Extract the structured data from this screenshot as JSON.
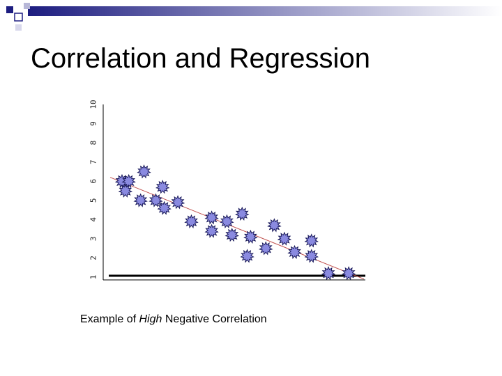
{
  "slide": {
    "title": "Correlation and Regression",
    "caption": {
      "before": "Example of ",
      "emphasis": "High",
      "after": " Negative Correlation"
    }
  },
  "colors": {
    "banner_navy": "#1d1d80",
    "banner_fade": "#ffffff",
    "marker_fill": "#8a8ae0",
    "marker_stroke": "#1a1a5a",
    "regression_line": "#c0504d",
    "axis": "#000000"
  },
  "chart_data": {
    "type": "scatter",
    "title": "",
    "xlabel": "",
    "ylabel": "",
    "y_tick_labels": [
      "1",
      "2",
      "3",
      "4",
      "5",
      "6",
      "7",
      "8",
      "9",
      "10"
    ],
    "ylim": [
      1,
      10
    ],
    "xlim": [
      0,
      15
    ],
    "grid": false,
    "marker": "spiky-star",
    "points": [
      {
        "x": 0.7,
        "y": 6.0
      },
      {
        "x": 1.1,
        "y": 6.0
      },
      {
        "x": 0.9,
        "y": 5.5
      },
      {
        "x": 2.0,
        "y": 6.5
      },
      {
        "x": 1.8,
        "y": 5.0
      },
      {
        "x": 2.7,
        "y": 5.0
      },
      {
        "x": 3.1,
        "y": 5.7
      },
      {
        "x": 3.2,
        "y": 4.6
      },
      {
        "x": 4.0,
        "y": 4.9
      },
      {
        "x": 4.8,
        "y": 3.9
      },
      {
        "x": 6.0,
        "y": 4.1
      },
      {
        "x": 6.0,
        "y": 3.4
      },
      {
        "x": 6.9,
        "y": 3.9
      },
      {
        "x": 7.2,
        "y": 3.2
      },
      {
        "x": 7.8,
        "y": 4.3
      },
      {
        "x": 8.1,
        "y": 2.1
      },
      {
        "x": 8.3,
        "y": 3.1
      },
      {
        "x": 9.2,
        "y": 2.5
      },
      {
        "x": 9.7,
        "y": 3.7
      },
      {
        "x": 10.3,
        "y": 3.0
      },
      {
        "x": 10.9,
        "y": 2.3
      },
      {
        "x": 11.9,
        "y": 2.1
      },
      {
        "x": 11.9,
        "y": 2.9
      },
      {
        "x": 12.9,
        "y": 1.2
      },
      {
        "x": 14.1,
        "y": 1.2
      }
    ],
    "regression_line": {
      "x": [
        0,
        15
      ],
      "y": [
        6.2,
        0.9
      ]
    }
  }
}
